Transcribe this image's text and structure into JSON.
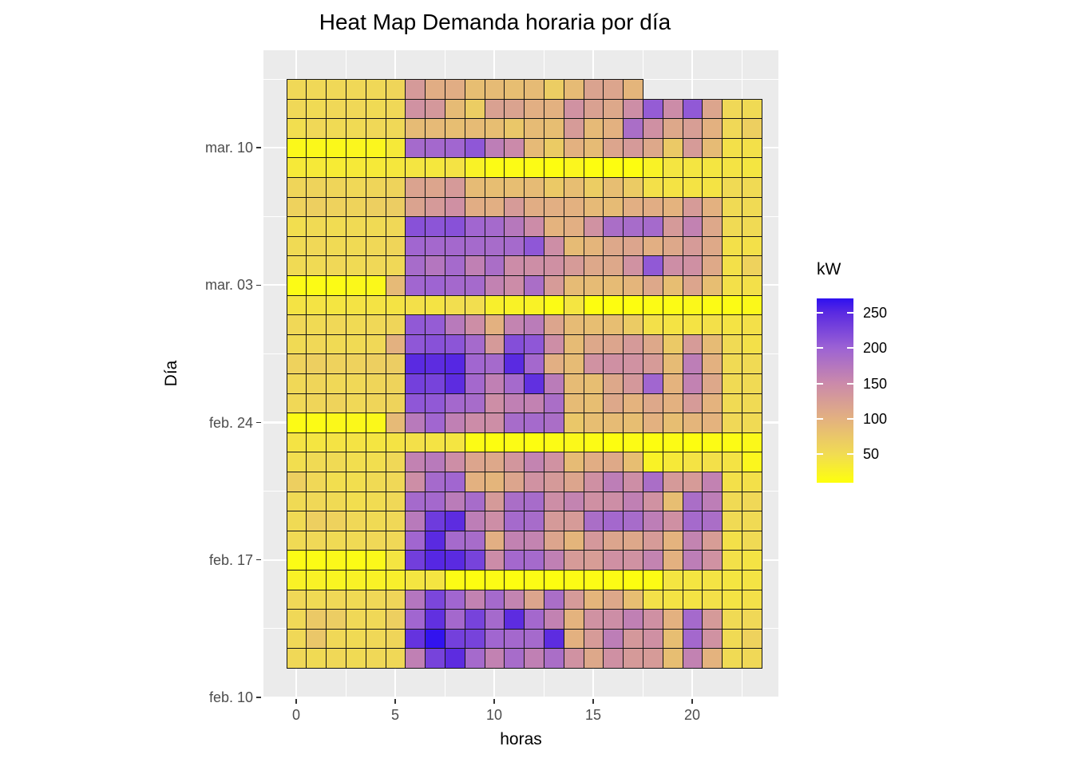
{
  "title": "Heat Map Demanda horaria por día",
  "x_axis": {
    "label": "horas",
    "ticks": [
      0,
      5,
      10,
      15,
      20
    ],
    "minor_ticks": [
      2.5,
      7.5,
      12.5,
      17.5,
      22.5
    ]
  },
  "y_axis": {
    "label": "Día",
    "tick_labels": [
      "mar. 10",
      "mar. 03",
      "feb. 24",
      "feb. 17",
      "feb. 10"
    ],
    "tick_rows": [
      3,
      10,
      17,
      24,
      31
    ]
  },
  "legend": {
    "title": "kW",
    "ticks": [
      250,
      200,
      150,
      100,
      50
    ]
  },
  "colors": {
    "panel_bg": "#EBEBEB",
    "gridline": "#FFFFFF",
    "cell_border": "#151515",
    "axis_text": "#4D4D4D",
    "title_text": "#000000"
  },
  "chart_data": {
    "type": "heatmap",
    "unit": "kW",
    "xlabel": "horas",
    "ylabel": "Día",
    "x_values": [
      0,
      1,
      2,
      3,
      4,
      5,
      6,
      7,
      8,
      9,
      10,
      11,
      12,
      13,
      14,
      15,
      16,
      17,
      18,
      19,
      20,
      21,
      22,
      23
    ],
    "x_range": [
      -0.5,
      23.5
    ],
    "y_range_dates": [
      "feb. 12",
      "mar. 13"
    ],
    "legend_title": "kW",
    "legend_ticks": [
      250,
      200,
      150,
      100,
      50
    ],
    "color_scale": {
      "domain": [
        10,
        270
      ],
      "stops": [
        {
          "value": 10,
          "color": "#FEFF0C"
        },
        {
          "value": 50,
          "color": "#F1DC52"
        },
        {
          "value": 100,
          "color": "#E3B180"
        },
        {
          "value": 150,
          "color": "#CB8AAA"
        },
        {
          "value": 200,
          "color": "#9C62D4"
        },
        {
          "value": 250,
          "color": "#5A2AE1"
        },
        {
          "value": 270,
          "color": "#2E10F0"
        }
      ]
    },
    "rows": [
      {
        "date": "mar. 13",
        "values": [
          55,
          55,
          55,
          55,
          55,
          58,
          130,
          105,
          105,
          85,
          88,
          85,
          88,
          68,
          88,
          118,
          115,
          95,
          null,
          null,
          null,
          null,
          null,
          null
        ]
      },
      {
        "date": "mar. 12",
        "values": [
          55,
          52,
          55,
          55,
          52,
          55,
          140,
          132,
          88,
          68,
          120,
          118,
          103,
          100,
          140,
          120,
          112,
          145,
          205,
          148,
          208,
          115,
          55,
          52
        ]
      },
      {
        "date": "mar. 11",
        "values": [
          48,
          55,
          52,
          52,
          55,
          55,
          88,
          90,
          85,
          88,
          85,
          75,
          88,
          85,
          128,
          90,
          100,
          185,
          142,
          112,
          125,
          100,
          55,
          65
        ]
      },
      {
        "date": "mar. 10",
        "values": [
          18,
          18,
          18,
          20,
          20,
          35,
          190,
          192,
          195,
          210,
          165,
          150,
          90,
          70,
          100,
          88,
          115,
          130,
          112,
          72,
          128,
          88,
          45,
          45
        ]
      },
      {
        "date": "mar. 09",
        "values": [
          35,
          35,
          33,
          35,
          35,
          38,
          40,
          38,
          42,
          25,
          15,
          15,
          15,
          12,
          20,
          12,
          12,
          12,
          25,
          40,
          40,
          40,
          42,
          40
        ]
      },
      {
        "date": "mar. 08",
        "values": [
          58,
          60,
          58,
          55,
          58,
          60,
          118,
          115,
          130,
          88,
          85,
          85,
          88,
          72,
          85,
          68,
          85,
          70,
          45,
          42,
          42,
          42,
          52,
          52
        ]
      },
      {
        "date": "mar. 07",
        "values": [
          62,
          65,
          62,
          60,
          65,
          68,
          118,
          130,
          142,
          105,
          103,
          128,
          105,
          103,
          100,
          90,
          88,
          103,
          105,
          98,
          128,
          100,
          52,
          52
        ]
      },
      {
        "date": "mar. 06",
        "values": [
          48,
          52,
          50,
          52,
          52,
          55,
          215,
          212,
          215,
          195,
          190,
          172,
          148,
          98,
          103,
          140,
          185,
          188,
          190,
          130,
          160,
          112,
          52,
          52
        ]
      },
      {
        "date": "mar. 05",
        "values": [
          52,
          55,
          52,
          52,
          55,
          58,
          195,
          192,
          192,
          190,
          188,
          190,
          210,
          145,
          88,
          95,
          112,
          115,
          103,
          112,
          128,
          110,
          45,
          45
        ]
      },
      {
        "date": "mar. 04",
        "values": [
          52,
          52,
          55,
          52,
          55,
          55,
          188,
          175,
          190,
          162,
          185,
          148,
          145,
          142,
          128,
          112,
          112,
          140,
          208,
          145,
          142,
          110,
          45,
          62
        ]
      },
      {
        "date": "mar. 03",
        "values": [
          15,
          15,
          15,
          18,
          18,
          90,
          195,
          198,
          192,
          190,
          160,
          148,
          185,
          128,
          88,
          88,
          88,
          95,
          112,
          85,
          115,
          85,
          45,
          45
        ]
      },
      {
        "date": "mar. 02",
        "values": [
          42,
          42,
          40,
          42,
          42,
          42,
          45,
          42,
          48,
          48,
          28,
          25,
          25,
          15,
          40,
          12,
          12,
          12,
          15,
          15,
          18,
          15,
          15,
          18
        ]
      },
      {
        "date": "mar. 01",
        "values": [
          55,
          52,
          55,
          52,
          55,
          58,
          208,
          205,
          170,
          145,
          100,
          158,
          168,
          115,
          88,
          85,
          85,
          70,
          45,
          42,
          42,
          45,
          42,
          45
        ]
      },
      {
        "date": "feb. 28",
        "values": [
          52,
          55,
          52,
          52,
          55,
          100,
          210,
          215,
          212,
          190,
          130,
          218,
          210,
          145,
          88,
          112,
          115,
          130,
          112,
          72,
          128,
          88,
          52,
          45
        ]
      },
      {
        "date": "feb. 27",
        "values": [
          62,
          65,
          62,
          62,
          65,
          68,
          250,
          248,
          252,
          195,
          190,
          250,
          192,
          103,
          88,
          140,
          142,
          140,
          128,
          88,
          165,
          100,
          52,
          52
        ]
      },
      {
        "date": "feb. 26",
        "values": [
          55,
          58,
          55,
          55,
          58,
          60,
          230,
          228,
          248,
          192,
          162,
          190,
          245,
          168,
          88,
          85,
          112,
          132,
          195,
          98,
          160,
          112,
          52,
          52
        ]
      },
      {
        "date": "feb. 25",
        "values": [
          55,
          58,
          60,
          55,
          58,
          60,
          210,
          208,
          192,
          188,
          145,
          162,
          160,
          185,
          88,
          85,
          112,
          98,
          112,
          100,
          128,
          98,
          52,
          52
        ]
      },
      {
        "date": "feb. 24",
        "values": [
          15,
          15,
          18,
          18,
          18,
          90,
          170,
          195,
          162,
          148,
          145,
          188,
          190,
          185,
          75,
          85,
          88,
          85,
          100,
          85,
          95,
          98,
          55,
          52
        ]
      },
      {
        "date": "feb. 23",
        "values": [
          42,
          40,
          42,
          42,
          40,
          42,
          45,
          42,
          40,
          15,
          12,
          15,
          12,
          15,
          18,
          15,
          12,
          15,
          12,
          15,
          12,
          15,
          15,
          18
        ]
      },
      {
        "date": "feb. 22",
        "values": [
          48,
          52,
          52,
          48,
          48,
          55,
          160,
          170,
          145,
          115,
          112,
          135,
          158,
          140,
          88,
          105,
          110,
          85,
          25,
          35,
          42,
          45,
          42,
          20
        ]
      },
      {
        "date": "feb. 21",
        "values": [
          65,
          55,
          48,
          48,
          52,
          55,
          145,
          190,
          195,
          100,
          95,
          115,
          140,
          130,
          115,
          142,
          165,
          145,
          185,
          130,
          128,
          160,
          45,
          45
        ]
      },
      {
        "date": "feb. 20",
        "values": [
          52,
          55,
          52,
          48,
          50,
          55,
          190,
          192,
          168,
          188,
          130,
          185,
          188,
          145,
          158,
          142,
          145,
          162,
          140,
          85,
          185,
          165,
          52,
          55
        ]
      },
      {
        "date": "feb. 19",
        "values": [
          52,
          65,
          62,
          55,
          52,
          55,
          170,
          235,
          248,
          165,
          145,
          190,
          188,
          130,
          128,
          185,
          192,
          188,
          165,
          142,
          190,
          185,
          52,
          52
        ]
      },
      {
        "date": "feb. 18",
        "values": [
          52,
          55,
          52,
          52,
          55,
          55,
          195,
          250,
          190,
          188,
          103,
          160,
          158,
          115,
          95,
          132,
          115,
          112,
          128,
          98,
          158,
          126,
          45,
          52
        ]
      },
      {
        "date": "feb. 17",
        "values": [
          15,
          15,
          18,
          15,
          18,
          40,
          232,
          252,
          250,
          228,
          148,
          192,
          190,
          162,
          128,
          126,
          142,
          140,
          158,
          100,
          165,
          140,
          45,
          42
        ]
      },
      {
        "date": "feb. 16",
        "values": [
          25,
          25,
          22,
          25,
          25,
          28,
          40,
          40,
          15,
          12,
          15,
          12,
          15,
          12,
          15,
          15,
          15,
          12,
          15,
          40,
          40,
          42,
          40,
          42
        ]
      },
      {
        "date": "feb. 15",
        "values": [
          55,
          52,
          55,
          52,
          55,
          58,
          175,
          225,
          195,
          160,
          190,
          158,
          115,
          185,
          130,
          95,
          112,
          85,
          45,
          42,
          42,
          45,
          42,
          45
        ]
      },
      {
        "date": "feb. 14",
        "values": [
          55,
          72,
          68,
          55,
          55,
          65,
          195,
          245,
          192,
          228,
          190,
          248,
          192,
          160,
          98,
          140,
          145,
          162,
          142,
          100,
          190,
          130,
          52,
          55
        ]
      },
      {
        "date": "feb. 13",
        "values": [
          55,
          75,
          55,
          52,
          55,
          58,
          242,
          268,
          230,
          228,
          195,
          192,
          190,
          248,
          100,
          128,
          165,
          132,
          142,
          85,
          192,
          140,
          52,
          62
        ]
      },
      {
        "date": "feb. 12",
        "values": [
          55,
          52,
          55,
          52,
          55,
          55,
          162,
          228,
          248,
          190,
          160,
          188,
          162,
          185,
          140,
          112,
          142,
          130,
          128,
          85,
          160,
          98,
          52,
          55
        ]
      }
    ]
  }
}
